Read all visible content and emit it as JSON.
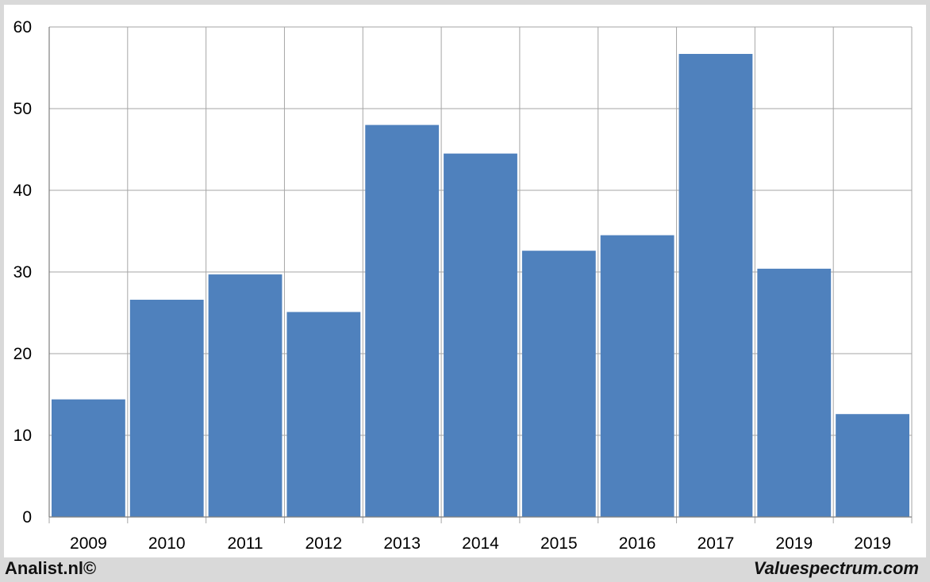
{
  "footer": {
    "left_text": "Analist.nl©",
    "right_text": "Valuespectrum.com"
  },
  "colors": {
    "bar": "#4f81bd",
    "grid": "#a6a6a6",
    "background": "#ffffff",
    "frame": "#d9d9d9"
  },
  "chart_data": {
    "type": "bar",
    "categories": [
      "2009",
      "2010",
      "2011",
      "2012",
      "2013",
      "2014",
      "2015",
      "2016",
      "2017",
      "2019",
      "2019"
    ],
    "values": [
      14.4,
      26.6,
      29.7,
      25.1,
      48.0,
      44.5,
      32.6,
      34.5,
      56.7,
      30.4,
      12.6
    ],
    "title": "",
    "xlabel": "",
    "ylabel": "",
    "ylim": [
      0,
      60
    ],
    "yticks": [
      "0",
      "10",
      "20",
      "30",
      "40",
      "50",
      "60"
    ],
    "grid": true,
    "legend": "none"
  }
}
